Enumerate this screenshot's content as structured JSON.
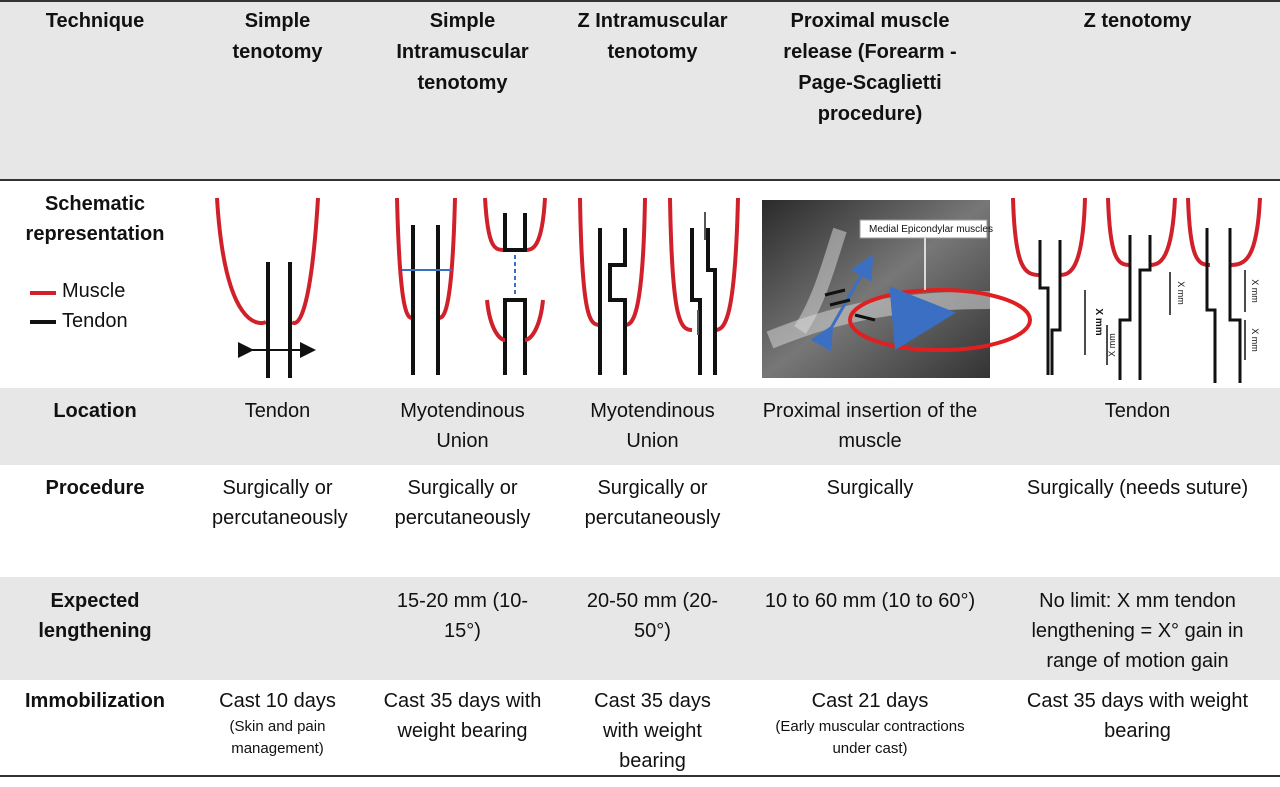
{
  "table": {
    "header": [
      "Technique",
      "Simple tenotomy",
      "Simple Intramuscular tenotomy",
      "Z Intramuscular tenotomy",
      "Proximal muscle release (Forearm - Page-Scaglietti procedure)",
      "Z tenotomy"
    ],
    "schematic": {
      "label": "Schematic representation",
      "legend": [
        "Muscle",
        "Tendon"
      ],
      "image_label": "Medial Epicondylar muscles",
      "measure_labels": [
        "X mm",
        "X mm",
        "X mm",
        "X mm",
        "X mm"
      ]
    },
    "rows": [
      {
        "label": "Location",
        "cells": [
          "Tendon",
          "Myotendinous Union",
          "Myotendinous Union",
          "Proximal insertion of the muscle",
          "Tendon"
        ]
      },
      {
        "label": "Procedure",
        "cells": [
          "Surgically or percutaneously",
          "Surgically or percutaneously",
          "Surgically or percutaneously",
          "Surgically",
          "Surgically (needs suture)"
        ]
      },
      {
        "label": "Expected lengthening",
        "cells": [
          null,
          "15-20 mm (10-15°)",
          "20-50 mm (20-50°)",
          "10 to 60 mm (10 to 60°)",
          "No limit: X mm tendon lengthening = X° gain in range of motion gain"
        ]
      },
      {
        "label": "Immobilization",
        "cells": [
          "Cast 10 days",
          "Cast 35 days with weight bearing",
          "Cast 35 days with weight bearing",
          "Cast 21 days",
          "Cast 35 days with weight bearing"
        ],
        "notes": [
          "(Skin and pain management)",
          null,
          null,
          "(Early muscular contractions under cast)",
          null
        ]
      }
    ]
  }
}
